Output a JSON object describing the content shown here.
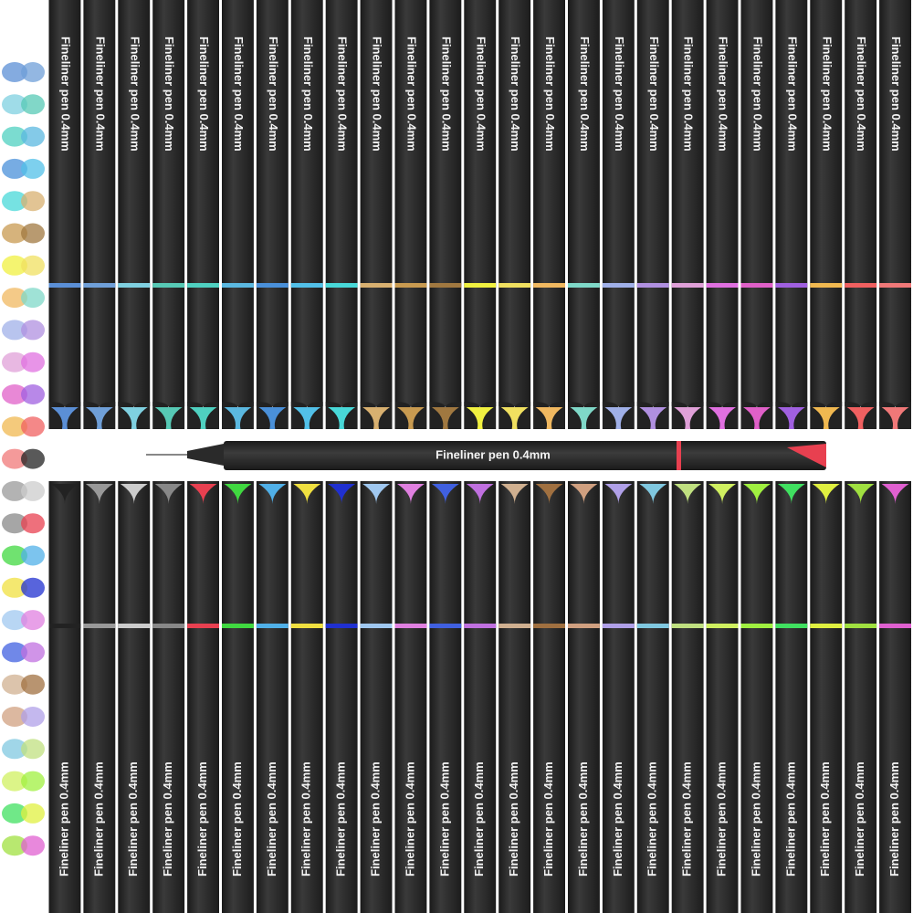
{
  "middle_pen": {
    "label": "Fineliner pen 0.4mm",
    "color": "#e84050"
  },
  "top_pens": [
    {
      "label": "Fineliner pen 0.4mm",
      "color": "#5b8fd6"
    },
    {
      "label": "Fineliner pen 0.4mm",
      "color": "#6f9fd8"
    },
    {
      "label": "Fineliner pen 0.4mm",
      "color": "#7fd0e0"
    },
    {
      "label": "Fineliner pen 0.4mm",
      "color": "#57c9b5"
    },
    {
      "label": "Fineliner pen 0.4mm",
      "color": "#4fd0c0"
    },
    {
      "label": "Fineliner pen 0.4mm",
      "color": "#5bb8e0"
    },
    {
      "label": "Fineliner pen 0.4mm",
      "color": "#4a90d9"
    },
    {
      "label": "Fineliner pen 0.4mm",
      "color": "#52c0e8"
    },
    {
      "label": "Fineliner pen 0.4mm",
      "color": "#48d8d8"
    },
    {
      "label": "Fineliner pen 0.4mm",
      "color": "#d8b070"
    },
    {
      "label": "Fineliner pen 0.4mm",
      "color": "#c89a50"
    },
    {
      "label": "Fineliner pen 0.4mm",
      "color": "#a07840"
    },
    {
      "label": "Fineliner pen 0.4mm",
      "color": "#f0f040"
    },
    {
      "label": "Fineliner pen 0.4mm",
      "color": "#f0e060"
    },
    {
      "label": "Fineliner pen 0.4mm",
      "color": "#f0b860"
    },
    {
      "label": "Fineliner pen 0.4mm",
      "color": "#7fd8c8"
    },
    {
      "label": "Fineliner pen 0.4mm",
      "color": "#a0b0e8"
    },
    {
      "label": "Fineliner pen 0.4mm",
      "color": "#b090e0"
    },
    {
      "label": "Fineliner pen 0.4mm",
      "color": "#e0a0d8"
    },
    {
      "label": "Fineliner pen 0.4mm",
      "color": "#e070e0"
    },
    {
      "label": "Fineliner pen 0.4mm",
      "color": "#e060c8"
    },
    {
      "label": "Fineliner pen 0.4mm",
      "color": "#a060e0"
    },
    {
      "label": "Fineliner pen 0.4mm",
      "color": "#f0b850"
    },
    {
      "label": "Fineliner pen 0.4mm",
      "color": "#f06060"
    },
    {
      "label": "Fineliner pen 0.4mm",
      "color": "#f07878"
    }
  ],
  "bottom_pens": [
    {
      "label": "Fineliner pen 0.4mm",
      "color": "#222222"
    },
    {
      "label": "Fineliner pen 0.4mm",
      "color": "#999999"
    },
    {
      "label": "Fineliner pen 0.4mm",
      "color": "#cccccc"
    },
    {
      "label": "Fineliner pen 0.4mm",
      "color": "#888888"
    },
    {
      "label": "Fineliner pen 0.4mm",
      "color": "#e84050"
    },
    {
      "label": "Fineliner pen 0.4mm",
      "color": "#40d840"
    },
    {
      "label": "Fineliner pen 0.4mm",
      "color": "#50b0e8"
    },
    {
      "label": "Fineliner pen 0.4mm",
      "color": "#f0e040"
    },
    {
      "label": "Fineliner pen 0.4mm",
      "color": "#2030d0"
    },
    {
      "label": "Fineliner pen 0.4mm",
      "color": "#a0c8f0"
    },
    {
      "label": "Fineliner pen 0.4mm",
      "color": "#e080e0"
    },
    {
      "label": "Fineliner pen 0.4mm",
      "color": "#4060e0"
    },
    {
      "label": "Fineliner pen 0.4mm",
      "color": "#c070e0"
    },
    {
      "label": "Fineliner pen 0.4mm",
      "color": "#d0b090"
    },
    {
      "label": "Fineliner pen 0.4mm",
      "color": "#a07040"
    },
    {
      "label": "Fineliner pen 0.4mm",
      "color": "#d0a080"
    },
    {
      "label": "Fineliner pen 0.4mm",
      "color": "#b0a0e8"
    },
    {
      "label": "Fineliner pen 0.4mm",
      "color": "#80c8e0"
    },
    {
      "label": "Fineliner pen 0.4mm",
      "color": "#c0e080"
    },
    {
      "label": "Fineliner pen 0.4mm",
      "color": "#d0f060"
    },
    {
      "label": "Fineliner pen 0.4mm",
      "color": "#a0f040"
    },
    {
      "label": "Fineliner pen 0.4mm",
      "color": "#40e060"
    },
    {
      "label": "Fineliner pen 0.4mm",
      "color": "#e0f040"
    },
    {
      "label": "Fineliner pen 0.4mm",
      "color": "#a0e040"
    },
    {
      "label": "Fineliner pen 0.4mm",
      "color": "#e060d0"
    }
  ]
}
